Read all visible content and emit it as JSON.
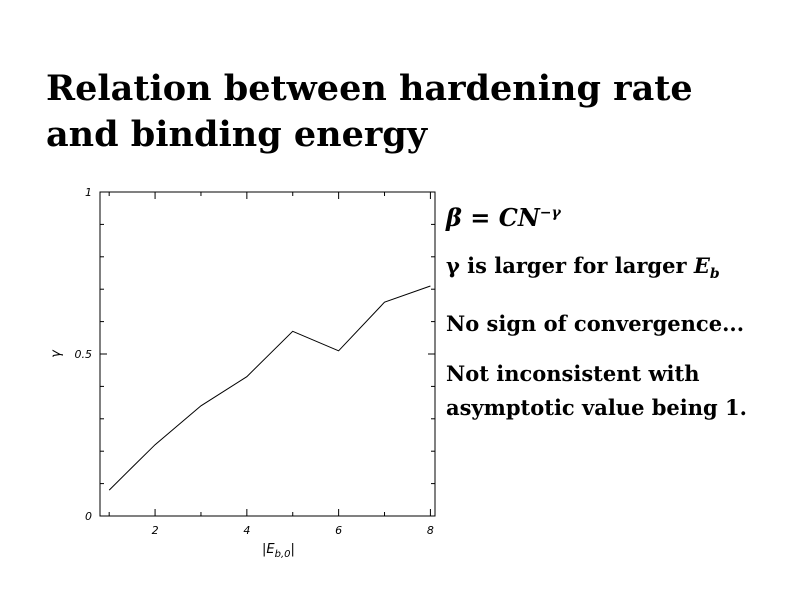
{
  "slide": {
    "title": "Relation between hardening rate and binding energy"
  },
  "notes": {
    "formula_lhs": "β = CN",
    "formula_exponent": "−γ",
    "note1_text": "γ is larger for larger ",
    "note1_math": "E",
    "note1_sub": "b",
    "note2": "No sign of convergence...",
    "note3": "Not inconsistent with asymptotic value being 1."
  },
  "chart_data": {
    "type": "line",
    "title": "",
    "xlabel": "|E",
    "xlabel_sub": "b,0",
    "xlabel_close": "|",
    "ylabel": "γ",
    "xlim": [
      0.8,
      8.1
    ],
    "ylim": [
      0,
      1
    ],
    "xticks": [
      2,
      4,
      6,
      8
    ],
    "xtick_labels": [
      "2",
      "4",
      "6",
      "8"
    ],
    "yticks": [
      0,
      0.5,
      1
    ],
    "ytick_labels": [
      "0",
      "0.5",
      "1"
    ],
    "grid": false,
    "series": [
      {
        "x": [
          1,
          1.5,
          2,
          3,
          4,
          5,
          6,
          7,
          8
        ],
        "y": [
          0.08,
          0.15,
          0.22,
          0.34,
          0.43,
          0.57,
          0.51,
          0.66,
          0.71
        ]
      }
    ]
  }
}
